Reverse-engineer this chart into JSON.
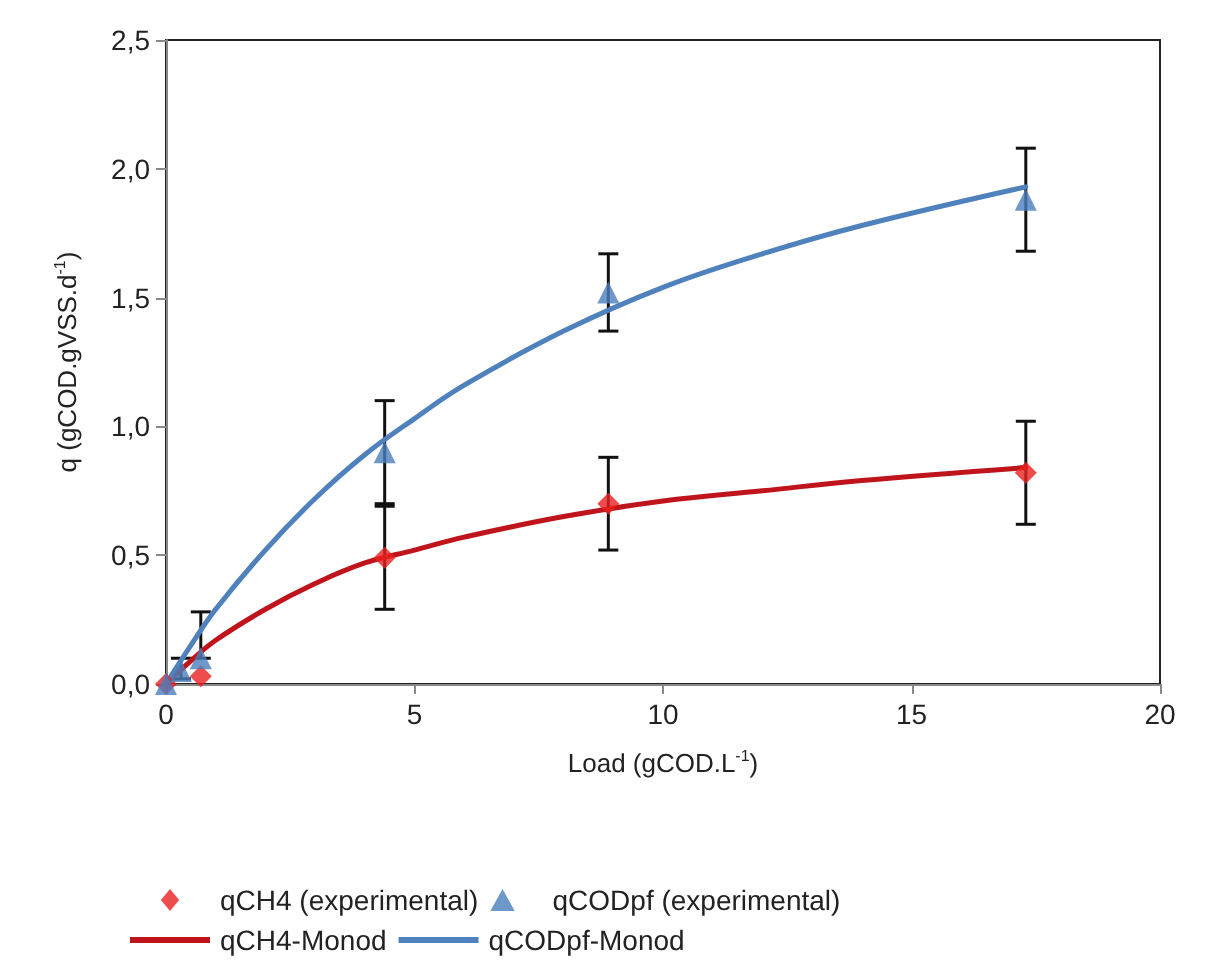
{
  "chart_data": {
    "type": "scatter",
    "xlabel": "Load (gCOD.L$^{-1}$)",
    "ylabel": "q (gCOD.gVSS.d$^{-1}$)",
    "xlim": [
      0,
      20
    ],
    "xticks": [
      0,
      5,
      10,
      15,
      20
    ],
    "ylim": [
      0,
      2.5
    ],
    "yticks": [
      {
        "value": 0,
        "label": "0,0"
      },
      {
        "value": 0.5,
        "label": "0,5"
      },
      {
        "value": 1,
        "label": "1,0"
      },
      {
        "value": 1.5,
        "label": "1,5"
      },
      {
        "value": 2,
        "label": "2,0"
      },
      {
        "value": 2.5,
        "label": "2,5"
      }
    ],
    "grid": false,
    "legend": "bottom",
    "series": [
      {
        "name": "qCH4 (experimental)",
        "marker": "diamond",
        "color": "#e8201f",
        "x": [
          0,
          0.3,
          0.7,
          4.4,
          8.9,
          17.3
        ],
        "values": [
          0,
          null,
          0.03,
          0.49,
          0.7,
          0.82
        ],
        "errors": [
          null,
          null,
          null,
          0.2,
          0.18,
          0.2
        ]
      },
      {
        "name": "qCODpf (experimental)",
        "marker": "triangle",
        "color": "#4a7ebb",
        "x": [
          0,
          0.3,
          0.7,
          4.4,
          8.9,
          17.3
        ],
        "values": [
          0,
          0.05,
          0.1,
          0.9,
          1.52,
          1.88
        ],
        "errors": [
          null,
          [
            0.02,
            0.1
          ],
          [
            0.1,
            0.28
          ],
          0.2,
          0.15,
          0.2
        ]
      },
      {
        "name": "qCH4-Monod",
        "type": "line",
        "marker": "none",
        "line_style": "solid",
        "color": "#c0141c",
        "x": [
          0,
          0.5,
          1,
          2,
          3,
          4,
          5,
          6,
          8,
          10,
          12,
          14,
          17.3
        ],
        "values": [
          0,
          0.09,
          0.17,
          0.29,
          0.39,
          0.47,
          0.52,
          0.57,
          0.65,
          0.71,
          0.75,
          0.79,
          0.84
        ]
      },
      {
        "name": "qCODpf-Monod",
        "type": "line",
        "marker": "none",
        "line_style": "solid",
        "color": "#4f81bd",
        "x": [
          0,
          0.5,
          1,
          2,
          3,
          4,
          5,
          6,
          8,
          10,
          12,
          14,
          17.3
        ],
        "values": [
          0,
          0.15,
          0.29,
          0.52,
          0.72,
          0.89,
          1.03,
          1.16,
          1.37,
          1.54,
          1.67,
          1.78,
          1.93
        ]
      }
    ]
  }
}
